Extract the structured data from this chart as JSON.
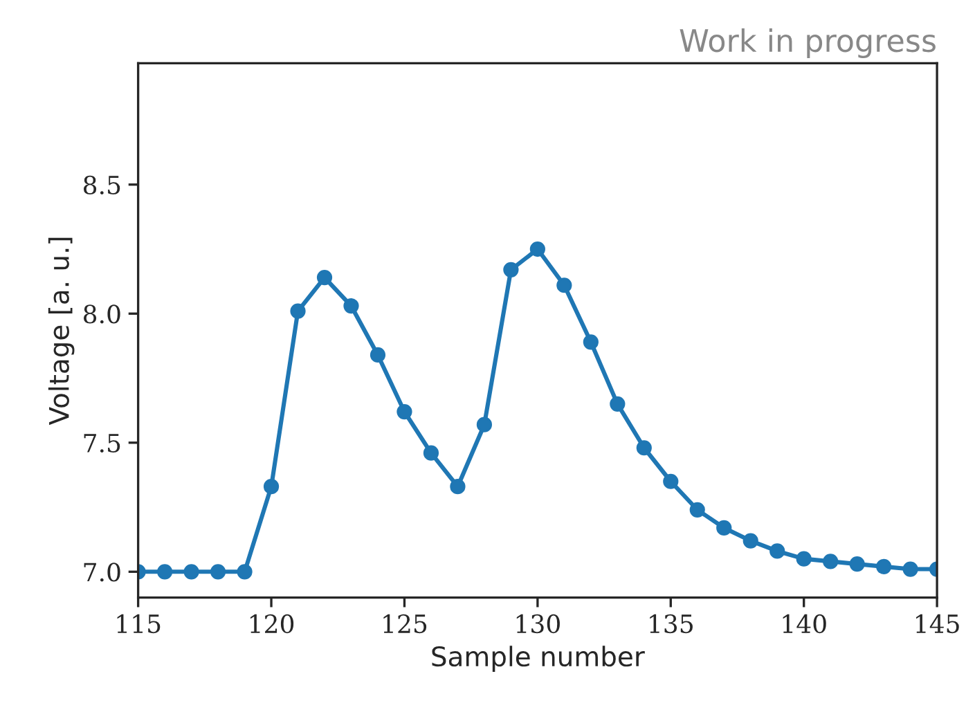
{
  "chart_data": {
    "type": "line",
    "title": "Work in progress",
    "xlabel": "Sample number",
    "ylabel": "Voltage [a. u.]",
    "x": [
      115,
      116,
      117,
      118,
      119,
      120,
      121,
      122,
      123,
      124,
      125,
      126,
      127,
      128,
      129,
      130,
      131,
      132,
      133,
      134,
      135,
      136,
      137,
      138,
      139,
      140,
      141,
      142,
      143,
      144,
      145
    ],
    "series": [
      {
        "color": "#1f77b4",
        "values": [
          7.0,
          7.0,
          7.0,
          7.0,
          7.0,
          7.33,
          8.01,
          8.14,
          8.03,
          7.84,
          7.62,
          7.46,
          7.33,
          7.57,
          8.17,
          8.25,
          8.11,
          7.89,
          7.65,
          7.48,
          7.35,
          7.24,
          7.17,
          7.12,
          7.08,
          7.05,
          7.04,
          7.03,
          7.02,
          7.01,
          7.01
        ]
      }
    ],
    "xlim": [
      115,
      145
    ],
    "xticks": [
      115,
      120,
      125,
      130,
      135,
      140,
      145
    ],
    "ylim": [
      6.9,
      8.97
    ],
    "yticks": [
      {
        "value": 7.0,
        "label": "7.0"
      },
      {
        "value": 7.5,
        "label": "7.5"
      },
      {
        "value": 8.0,
        "label": "8.0"
      },
      {
        "value": 8.5,
        "label": "8.5"
      }
    ],
    "marker": "circle",
    "line_style": "solid",
    "grid": false,
    "legend": false
  }
}
